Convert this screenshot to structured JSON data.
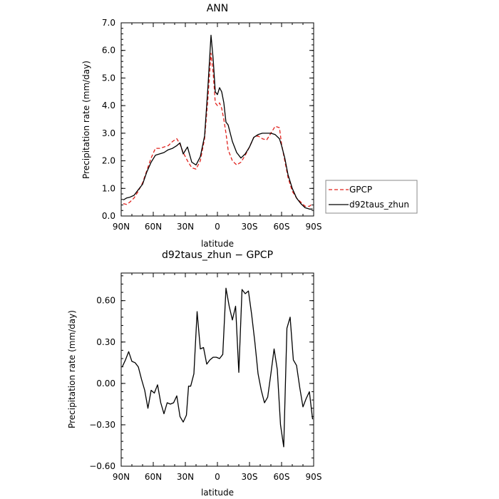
{
  "chart_data": [
    {
      "type": "line",
      "title": "ANN",
      "xlabel": "latitude",
      "ylabel": "Precipitation rate (mm/day)",
      "x_ticks": [
        "90N",
        "60N",
        "30N",
        "0",
        "30S",
        "60S",
        "90S"
      ],
      "x_tick_values": [
        90,
        60,
        30,
        0,
        -30,
        -60,
        -90
      ],
      "xlim": [
        90,
        -90
      ],
      "y_ticks": [
        "0.0",
        "1.0",
        "2.0",
        "3.0",
        "4.0",
        "5.0",
        "6.0",
        "7.0"
      ],
      "y_tick_values": [
        0,
        1,
        2,
        3,
        4,
        5,
        6,
        7
      ],
      "ylim": [
        0,
        7
      ],
      "grid": false,
      "legend_position": "right",
      "series": [
        {
          "name": "GPCP",
          "color": "#e0201b",
          "dash": "dashed",
          "x": [
            88,
            85,
            82,
            78,
            74,
            70,
            66,
            62,
            58,
            54,
            50,
            46,
            42,
            38,
            35,
            32,
            28,
            24,
            20,
            16,
            12,
            9,
            6,
            4,
            2,
            0,
            -2,
            -4,
            -6,
            -8,
            -10,
            -14,
            -18,
            -22,
            -26,
            -30,
            -34,
            -38,
            -42,
            -46,
            -50,
            -54,
            -58,
            -60,
            -63,
            -66,
            -70,
            -74,
            -78,
            -82,
            -86,
            -89
          ],
          "y": [
            0.45,
            0.42,
            0.5,
            0.65,
            0.9,
            1.2,
            1.65,
            2.1,
            2.45,
            2.45,
            2.5,
            2.55,
            2.7,
            2.8,
            2.6,
            2.3,
            2.0,
            1.75,
            1.7,
            2.0,
            2.8,
            4.2,
            5.9,
            5.2,
            4.1,
            4.0,
            4.1,
            3.9,
            3.5,
            3.0,
            2.4,
            2.0,
            1.85,
            1.95,
            2.2,
            2.5,
            2.85,
            2.9,
            2.8,
            2.75,
            3.0,
            3.25,
            3.2,
            2.6,
            2.0,
            1.4,
            0.9,
            0.65,
            0.5,
            0.35,
            0.35,
            0.45
          ]
        },
        {
          "name": "d92taus_zhun",
          "color": "#000000",
          "dash": "solid",
          "x": [
            88,
            85,
            82,
            78,
            74,
            70,
            66,
            62,
            58,
            54,
            50,
            46,
            42,
            38,
            35,
            32,
            28,
            24,
            20,
            16,
            12,
            9,
            6,
            4,
            2,
            0,
            -2,
            -4,
            -6,
            -8,
            -10,
            -14,
            -18,
            -22,
            -26,
            -30,
            -34,
            -38,
            -42,
            -46,
            -50,
            -54,
            -58,
            -60,
            -63,
            -66,
            -70,
            -74,
            -78,
            -82,
            -86,
            -89
          ],
          "y": [
            0.58,
            0.65,
            0.68,
            0.75,
            0.95,
            1.15,
            1.6,
            1.95,
            2.2,
            2.25,
            2.3,
            2.4,
            2.45,
            2.55,
            2.65,
            2.25,
            2.5,
            1.95,
            1.85,
            2.15,
            2.9,
            4.6,
            6.55,
            5.7,
            4.5,
            4.4,
            4.65,
            4.5,
            4.1,
            3.4,
            3.3,
            2.7,
            2.3,
            2.1,
            2.25,
            2.5,
            2.85,
            2.95,
            3.0,
            3.0,
            3.0,
            2.95,
            2.8,
            2.55,
            2.1,
            1.5,
            1.0,
            0.65,
            0.45,
            0.3,
            0.25,
            0.25
          ]
        }
      ]
    },
    {
      "type": "line",
      "title": "d92taus_zhun − GPCP",
      "xlabel": "latitude",
      "ylabel": "Precipitation rate (mm/day)",
      "x_ticks": [
        "90N",
        "60N",
        "30N",
        "0",
        "30S",
        "60S",
        "90S"
      ],
      "x_tick_values": [
        90,
        60,
        30,
        0,
        -30,
        -60,
        -90
      ],
      "xlim": [
        90,
        -90
      ],
      "y_ticks": [
        "−0.60",
        "−0.30",
        "0.00",
        "0.30",
        "0.60"
      ],
      "y_tick_values": [
        -0.6,
        -0.3,
        0.0,
        0.3,
        0.6
      ],
      "ylim": [
        -0.6,
        0.8
      ],
      "grid": false,
      "series": [
        {
          "name": "",
          "color": "#000000",
          "dash": "solid",
          "x": [
            89,
            86,
            83,
            80,
            77,
            74,
            71,
            68,
            65,
            62,
            59,
            56,
            53,
            50,
            47,
            44,
            41,
            38,
            35,
            32,
            29,
            27,
            25,
            22,
            19,
            16,
            13,
            10,
            7,
            4,
            1,
            -2,
            -5,
            -8,
            -11,
            -14,
            -17,
            -20,
            -23,
            -26,
            -29,
            -32,
            -35,
            -38,
            -41,
            -44,
            -47,
            -50,
            -53,
            -56,
            -59,
            -62,
            -65,
            -68,
            -71,
            -74,
            -77,
            -80,
            -83,
            -86,
            -89
          ],
          "y": [
            0.12,
            0.17,
            0.23,
            0.16,
            0.15,
            0.12,
            0.03,
            -0.05,
            -0.18,
            -0.05,
            -0.07,
            -0.01,
            -0.14,
            -0.22,
            -0.14,
            -0.15,
            -0.14,
            -0.09,
            -0.24,
            -0.28,
            -0.23,
            -0.02,
            -0.02,
            0.07,
            0.52,
            0.25,
            0.26,
            0.14,
            0.17,
            0.19,
            0.19,
            0.18,
            0.21,
            0.69,
            0.56,
            0.46,
            0.56,
            0.08,
            0.68,
            0.65,
            0.67,
            0.5,
            0.3,
            0.07,
            -0.05,
            -0.14,
            -0.1,
            0.07,
            0.25,
            0.1,
            -0.3,
            -0.46,
            0.4,
            0.48,
            0.17,
            0.13,
            -0.03,
            -0.17,
            -0.11,
            -0.06,
            -0.26
          ]
        }
      ]
    }
  ]
}
